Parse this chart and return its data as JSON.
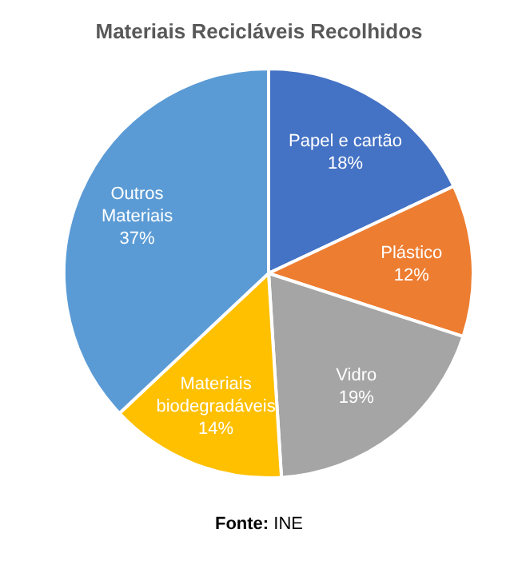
{
  "chart_data": {
    "type": "pie",
    "title": "Materiais Recicláveis Recolhidos",
    "categories": [
      "Papel e cartão",
      "Plástico",
      "Vidro",
      "Materiais biodegradáveis",
      "Outros Materiais"
    ],
    "values": [
      18,
      12,
      19,
      14,
      37
    ],
    "value_labels": [
      "18%",
      "12%",
      "19%",
      "14%",
      "37%"
    ],
    "colors": [
      "#4472c4",
      "#ed7d31",
      "#a5a5a5",
      "#ffc000",
      "#5b9bd5"
    ],
    "annotations": [
      "Fonte: INE"
    ]
  }
}
